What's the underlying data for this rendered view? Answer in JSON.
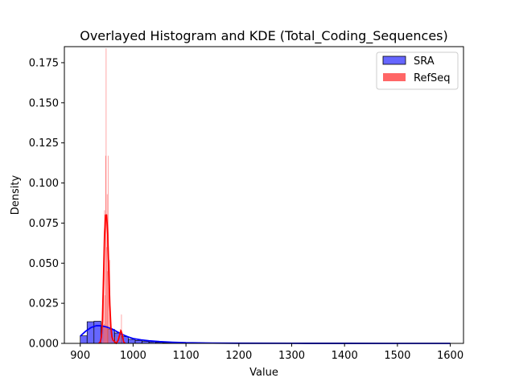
{
  "chart_data": {
    "type": "histogram",
    "title": "Overlayed Histogram and KDE (Total_Coding_Sequences)",
    "xlabel": "Value",
    "ylabel": "Density",
    "xlim": [
      870,
      1625
    ],
    "ylim": [
      0,
      0.185
    ],
    "xticks": [
      "900",
      "1000",
      "1100",
      "1200",
      "1300",
      "1400",
      "1500",
      "1600"
    ],
    "xtick_values": [
      900,
      1000,
      1100,
      1200,
      1300,
      1400,
      1500,
      1600
    ],
    "yticks": [
      "0.000",
      "0.025",
      "0.050",
      "0.075",
      "0.100",
      "0.125",
      "0.150",
      "0.175"
    ],
    "ytick_values": [
      0,
      0.025,
      0.05,
      0.075,
      0.1,
      0.125,
      0.15,
      0.175
    ],
    "grid": false,
    "legend_position": "top-right",
    "series": [
      {
        "name": "SRA",
        "kind": "histogram",
        "bar_fill": "#6666ff",
        "bar_edge": "#000000",
        "kde_color": "#0000ff",
        "bins": [
          {
            "x0": 900,
            "x1": 913,
            "density": 0.0047
          },
          {
            "x0": 913,
            "x1": 926,
            "density": 0.0135
          },
          {
            "x0": 926,
            "x1": 939,
            "density": 0.0138
          },
          {
            "x0": 939,
            "x1": 952,
            "density": 0.0105
          },
          {
            "x0": 952,
            "x1": 965,
            "density": 0.0087
          },
          {
            "x0": 965,
            "x1": 978,
            "density": 0.0065
          },
          {
            "x0": 978,
            "x1": 991,
            "density": 0.0042
          },
          {
            "x0": 991,
            "x1": 1004,
            "density": 0.0025
          },
          {
            "x0": 1004,
            "x1": 1017,
            "density": 0.0018
          },
          {
            "x0": 1017,
            "x1": 1030,
            "density": 0.0012
          },
          {
            "x0": 1030,
            "x1": 1043,
            "density": 0.0009
          },
          {
            "x0": 1043,
            "x1": 1056,
            "density": 0.0006
          },
          {
            "x0": 1056,
            "x1": 1069,
            "density": 0.0004
          },
          {
            "x0": 1069,
            "x1": 1082,
            "density": 0.0003
          },
          {
            "x0": 1082,
            "x1": 1095,
            "density": 0.0002
          }
        ],
        "kde": [
          [
            900,
            0.0045
          ],
          [
            910,
            0.0075
          ],
          [
            920,
            0.0098
          ],
          [
            930,
            0.011
          ],
          [
            940,
            0.011
          ],
          [
            950,
            0.0102
          ],
          [
            960,
            0.009
          ],
          [
            970,
            0.0072
          ],
          [
            980,
            0.0055
          ],
          [
            990,
            0.0041
          ],
          [
            1000,
            0.003
          ],
          [
            1015,
            0.0022
          ],
          [
            1030,
            0.0016
          ],
          [
            1050,
            0.0011
          ],
          [
            1075,
            0.0007
          ],
          [
            1100,
            0.0004
          ],
          [
            1150,
            0.0002
          ],
          [
            1200,
            0.0001
          ],
          [
            1300,
            5e-05
          ],
          [
            1400,
            2e-05
          ],
          [
            1500,
            1e-05
          ],
          [
            1600,
            0.0
          ]
        ]
      },
      {
        "name": "RefSeq",
        "kind": "histogram",
        "bar_fill": "#ff6666",
        "kde_color": "#ff0000",
        "bins": [
          {
            "x0": 939.5,
            "x1": 940.5,
            "density": 0.002
          },
          {
            "x0": 941.5,
            "x1": 942.5,
            "density": 0.006
          },
          {
            "x0": 943.5,
            "x1": 944.5,
            "density": 0.033
          },
          {
            "x0": 944.5,
            "x1": 945.5,
            "density": 0.012
          },
          {
            "x0": 945.5,
            "x1": 946.5,
            "density": 0.083
          },
          {
            "x0": 946.5,
            "x1": 947.5,
            "density": 0.03
          },
          {
            "x0": 947.5,
            "x1": 948.5,
            "density": 0.117
          },
          {
            "x0": 948.5,
            "x1": 949.5,
            "density": 0.184
          },
          {
            "x0": 949.5,
            "x1": 950.5,
            "density": 0.06
          },
          {
            "x0": 950.5,
            "x1": 951.5,
            "density": 0.093
          },
          {
            "x0": 951.5,
            "x1": 952.5,
            "density": 0.045
          },
          {
            "x0": 952.5,
            "x1": 953.5,
            "density": 0.117
          },
          {
            "x0": 953.5,
            "x1": 954.5,
            "density": 0.035
          },
          {
            "x0": 955.5,
            "x1": 956.5,
            "density": 0.052
          },
          {
            "x0": 957.5,
            "x1": 958.5,
            "density": 0.012
          },
          {
            "x0": 959.5,
            "x1": 960.5,
            "density": 0.006
          },
          {
            "x0": 963.5,
            "x1": 964.5,
            "density": 0.004
          },
          {
            "x0": 966.5,
            "x1": 967.5,
            "density": 0.005
          },
          {
            "x0": 970.5,
            "x1": 971.5,
            "density": 0.004
          },
          {
            "x0": 975.5,
            "x1": 976.5,
            "density": 0.009
          },
          {
            "x0": 977.5,
            "x1": 978.5,
            "density": 0.018
          }
        ],
        "kde": [
          [
            935,
            0.0
          ],
          [
            938,
            0.001
          ],
          [
            940,
            0.004
          ],
          [
            942,
            0.014
          ],
          [
            944,
            0.04
          ],
          [
            946,
            0.068
          ],
          [
            948,
            0.08
          ],
          [
            950,
            0.08
          ],
          [
            952,
            0.068
          ],
          [
            954,
            0.045
          ],
          [
            956,
            0.024
          ],
          [
            958,
            0.01
          ],
          [
            960,
            0.004
          ],
          [
            962,
            0.002
          ],
          [
            965,
            0.001
          ],
          [
            968,
            0.0
          ],
          [
            972,
            0.002
          ],
          [
            975,
            0.006
          ],
          [
            977,
            0.008
          ],
          [
            979,
            0.006
          ],
          [
            982,
            0.001
          ],
          [
            985,
            0.0
          ]
        ]
      }
    ]
  }
}
